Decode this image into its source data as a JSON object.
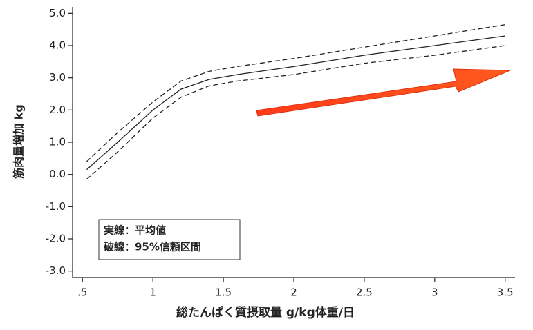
{
  "chart_data": {
    "type": "line",
    "x_label": "総たんぱく質摂取量 g/kg体重/日",
    "y_label": "筋肉量増加 kg",
    "annotations": [
      "実線：平均値",
      "破線：95%信頼区間"
    ],
    "x": [
      0.53,
      0.75,
      1.0,
      1.2,
      1.4,
      1.6,
      2.0,
      2.5,
      3.0,
      3.5
    ],
    "series": [
      {
        "style": "solid",
        "color": "#222222",
        "values": [
          0.15,
          1.0,
          2.0,
          2.65,
          2.95,
          3.1,
          3.35,
          3.7,
          4.0,
          4.3
        ]
      },
      {
        "style": "dashed",
        "color": "#222222",
        "values": [
          0.4,
          1.3,
          2.25,
          2.9,
          3.2,
          3.35,
          3.6,
          3.95,
          4.3,
          4.65
        ]
      },
      {
        "style": "dashed",
        "color": "#222222",
        "values": [
          -0.15,
          0.7,
          1.75,
          2.4,
          2.75,
          2.9,
          3.1,
          3.45,
          3.7,
          4.0
        ]
      }
    ],
    "xlim": [
      0.43,
      3.57
    ],
    "ylim": [
      -3.2,
      5.2
    ],
    "xticks": [
      {
        "value": 0.5,
        "label": ".5"
      },
      1,
      1.5,
      2,
      2.5,
      3,
      3.5
    ],
    "yticks": [
      {
        "value": 5,
        "label": "5.0"
      },
      {
        "value": 4,
        "label": "4.0"
      },
      {
        "value": 3,
        "label": "3.0"
      },
      {
        "value": 2,
        "label": "2.0"
      },
      {
        "value": 1,
        "label": "1.0"
      },
      {
        "value": 0,
        "label": "0.0"
      },
      {
        "value": -1,
        "label": "-1.0"
      },
      {
        "value": -2,
        "label": "-2.0"
      },
      {
        "value": -3,
        "label": "-3.0"
      }
    ],
    "grid": false
  }
}
